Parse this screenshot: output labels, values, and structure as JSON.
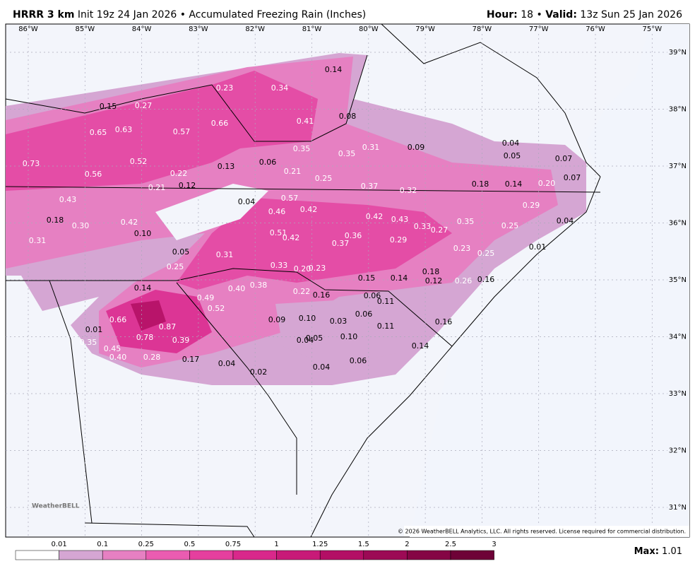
{
  "header": {
    "model": "HRRR 3 km",
    "description": "Init 19z 24 Jan 2026 • Accumulated Freezing Rain (Inches)",
    "hour_label": "Hour:",
    "hour": "18",
    "separator": "•",
    "valid_label": "Valid:",
    "valid": "13z Sun 25 Jan 2026"
  },
  "longitude_labels": [
    "86°W",
    "85°W",
    "84°W",
    "83°W",
    "82°W",
    "81°W",
    "80°W",
    "79°W",
    "78°W",
    "77°W",
    "76°W",
    "75°W"
  ],
  "latitude_labels": [
    "39°N",
    "38°N",
    "37°N",
    "36°N",
    "35°N",
    "34°N",
    "33°N",
    "32°N",
    "31°N"
  ],
  "point_labels": [
    "0.14",
    "0.23",
    "0.34",
    "0.15",
    "0.27",
    "0.08",
    "0.66",
    "0.41",
    "0.65",
    "0.63",
    "0.57",
    "0.35",
    "0.35",
    "0.31",
    "0.09",
    "0.04",
    "0.05",
    "0.07",
    "0.73",
    "0.52",
    "0.13",
    "0.06",
    "0.56",
    "0.22",
    "0.21",
    "0.25",
    "0.07",
    "0.21",
    "0.12",
    "0.37",
    "0.32",
    "0.18",
    "0.14",
    "0.20",
    "0.43",
    "0.04",
    "0.57",
    "0.46",
    "0.42",
    "0.29",
    "0.18",
    "0.30",
    "0.42",
    "0.42",
    "0.43",
    "0.33",
    "0.27",
    "0.35",
    "0.25",
    "0.04",
    "0.10",
    "0.51",
    "0.42",
    "0.36",
    "0.31",
    "0.37",
    "0.29",
    "0.05",
    "0.31",
    "0.23",
    "0.25",
    "0.01",
    "0.25",
    "0.33",
    "0.20",
    "0.23",
    "0.18",
    "0.15",
    "0.14",
    "0.12",
    "0.26",
    "0.16",
    "0.14",
    "0.40",
    "0.38",
    "0.22",
    "0.16",
    "0.06",
    "0.11",
    "0.49",
    "0.52",
    "0.06",
    "0.66",
    "0.09",
    "0.10",
    "0.03",
    "0.11",
    "0.16",
    "0.01",
    "0.87",
    "0.78",
    "0.39",
    "0.35",
    "0.04",
    "0.05",
    "0.10",
    "0.45",
    "0.40",
    "0.28",
    "0.17",
    "0.14",
    "0.04",
    "0.02",
    "0.06",
    "0.04"
  ],
  "credit": "© 2026 WeatherBELL Analytics, LLC. All rights reserved. License required for commercial distribution.",
  "logo": "WeatherBELL",
  "legend": {
    "labels": [
      "0.01",
      "0.1",
      "0.25",
      "0.5",
      "0.75",
      "1",
      "1.25",
      "1.5",
      "2",
      "2.5",
      "3"
    ],
    "colors": [
      "#ffffff",
      "#d5a6d3",
      "#e680c2",
      "#ea5cb1",
      "#e53f9e",
      "#d9288b",
      "#c81a78",
      "#b30f65",
      "#9c0a55",
      "#850545",
      "#6e0237"
    ]
  },
  "max": {
    "label": "Max:",
    "value": "1.01"
  }
}
